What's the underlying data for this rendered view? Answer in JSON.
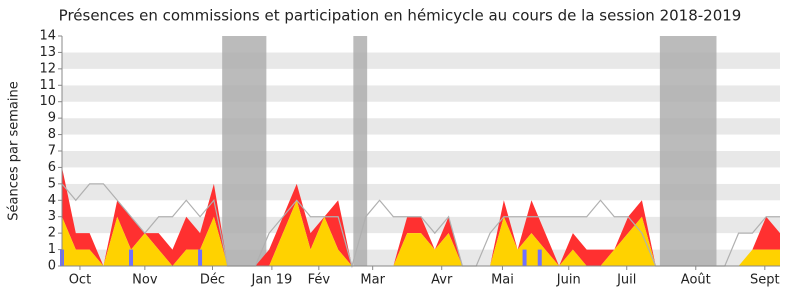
{
  "chart_data": {
    "type": "area",
    "title": "Présences en commissions et participation en hémicycle au cours de la session 2018-2019",
    "y_label": "Séances par semaine",
    "x": [
      0,
      1,
      2,
      3,
      4,
      5,
      6,
      7,
      8,
      9,
      10,
      11,
      12,
      13,
      14,
      15,
      16,
      17,
      18,
      19,
      20,
      21,
      22,
      23,
      24,
      25,
      26,
      27,
      28,
      29,
      30,
      31,
      32,
      33,
      34,
      35,
      36,
      37,
      38,
      39,
      40,
      41,
      42,
      43,
      44,
      45,
      46,
      47,
      48,
      49,
      50,
      51,
      52
    ],
    "xlim": [
      0,
      52
    ],
    "xticks": [
      {
        "value": 1.3,
        "label": "Oct"
      },
      {
        "value": 6.0,
        "label": "Nov"
      },
      {
        "value": 10.9,
        "label": "Déc"
      },
      {
        "value": 15.2,
        "label": "Jan 19"
      },
      {
        "value": 18.6,
        "label": "Fév"
      },
      {
        "value": 22.5,
        "label": "Mar"
      },
      {
        "value": 27.5,
        "label": "Avr"
      },
      {
        "value": 31.9,
        "label": "Mai"
      },
      {
        "value": 36.7,
        "label": "Juin"
      },
      {
        "value": 40.9,
        "label": "Juil"
      },
      {
        "value": 45.9,
        "label": "Août"
      },
      {
        "value": 50.9,
        "label": "Sept"
      }
    ],
    "ylim": [
      0,
      14
    ],
    "yticks": [
      0,
      1,
      2,
      3,
      4,
      5,
      6,
      7,
      8,
      9,
      10,
      11,
      12,
      13,
      14
    ],
    "grid": true,
    "shaded_ranges": [
      [
        11.6,
        14.8
      ],
      [
        21.1,
        22.1
      ],
      [
        43.3,
        47.4
      ]
    ],
    "series": [
      {
        "color": "#ffd200",
        "values": [
          3,
          1,
          1,
          0,
          3,
          1,
          2,
          1,
          0,
          1,
          1,
          3,
          0,
          0,
          0,
          0,
          2,
          4,
          1,
          3,
          1,
          0,
          0,
          0,
          0,
          2,
          2,
          1,
          2,
          0,
          0,
          0,
          3,
          1,
          2,
          1,
          0,
          1,
          0,
          0,
          1,
          2,
          3,
          0,
          0,
          0,
          0,
          0,
          0,
          0,
          1,
          1,
          1
        ]
      },
      {
        "color": "#ff3030",
        "values": [
          3,
          1,
          1,
          0,
          1,
          2,
          0,
          1,
          1,
          2,
          1,
          2,
          0,
          0,
          0,
          1,
          1,
          1,
          1,
          0,
          3,
          0,
          0,
          0,
          0,
          1,
          1,
          0,
          1,
          0,
          0,
          0,
          1,
          0,
          2,
          1,
          0,
          1,
          1,
          1,
          0,
          1,
          1,
          0,
          0,
          0,
          0,
          0,
          0,
          0,
          0,
          2,
          1
        ]
      },
      {
        "color": "#b0b0b0",
        "values": [
          5,
          4,
          5,
          5,
          4,
          3,
          2,
          3,
          3,
          4,
          3,
          4,
          0,
          0,
          0,
          2,
          3,
          4,
          3,
          3,
          3,
          0,
          3,
          4,
          3,
          3,
          3,
          2,
          3,
          0,
          0,
          2,
          3,
          3,
          3,
          3,
          3,
          3,
          3,
          4,
          3,
          3,
          2,
          0,
          0,
          0,
          0,
          0,
          0,
          2,
          2,
          3,
          3
        ]
      },
      {
        "color": "#7070ff",
        "x": [
          0,
          5,
          10,
          33.5,
          34.6
        ],
        "values": [
          1,
          1,
          1,
          1,
          1
        ]
      }
    ]
  }
}
